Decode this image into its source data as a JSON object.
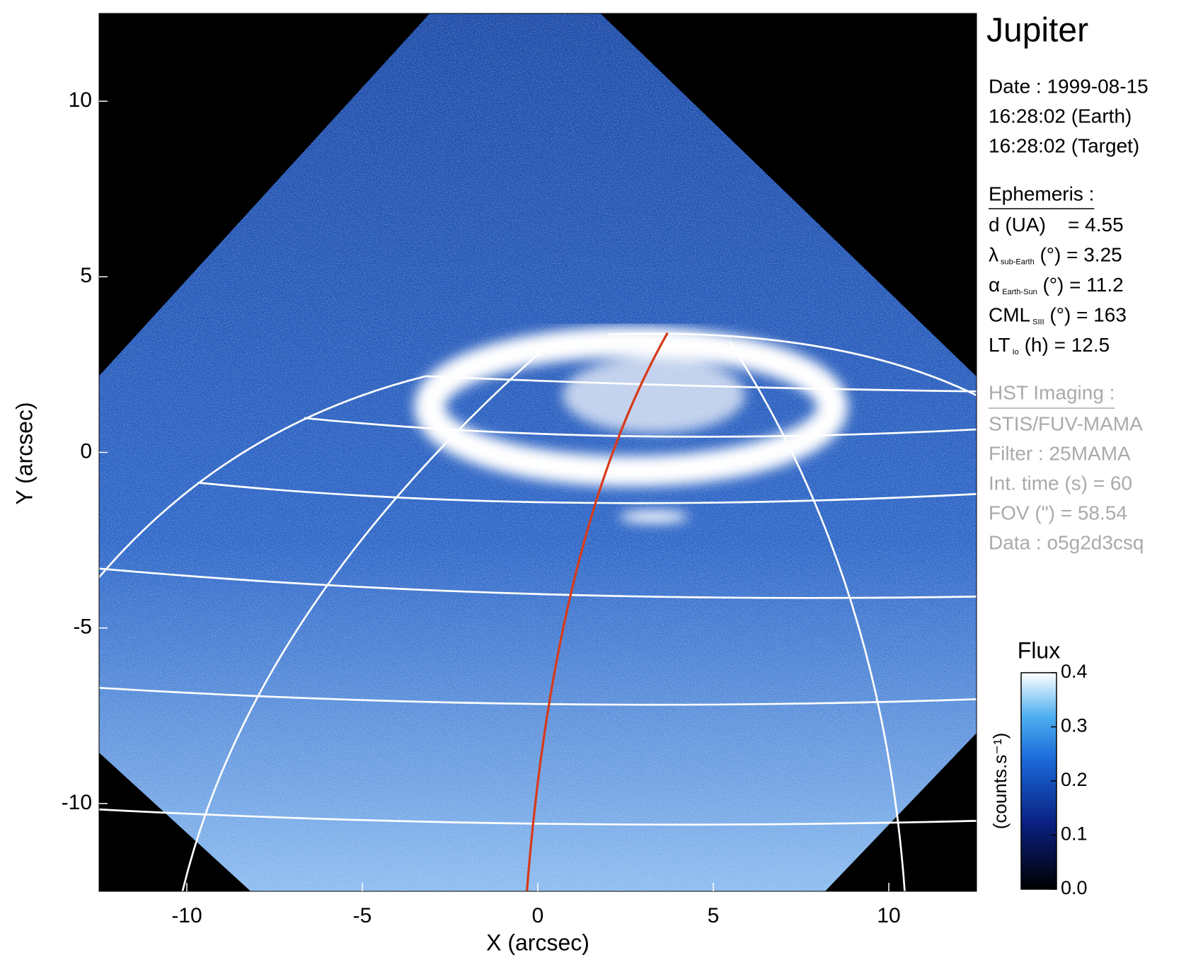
{
  "chart_data": {
    "type": "image",
    "title": "Jupiter",
    "xlabel": "X (arcsec)",
    "ylabel": "Y (arcsec)",
    "xlim": [
      -12.5,
      12.5
    ],
    "ylim": [
      -12.5,
      12.5
    ],
    "xticks": [
      -10,
      -5,
      0,
      5,
      10
    ],
    "yticks": [
      -10,
      -5,
      0,
      5,
      10
    ],
    "info": {
      "date_lines": [
        "Date : 1999-08-15",
        "16:28:02 (Earth)",
        "16:28:02 (Target)"
      ],
      "ephemeris_title": "Ephemeris :",
      "ephemeris": [
        {
          "text": "d (UA)    = 4.55"
        },
        {
          "symbol": "λ",
          "subscript": "sub-Earth",
          "text": " (°) = 3.25"
        },
        {
          "symbol": "α",
          "subscript": "Earth-Sun",
          "text": " (°) = 11.2"
        },
        {
          "symbol": "CML",
          "subscript": "SIII",
          "text": " (°) = 163"
        },
        {
          "symbol": "LT",
          "subscript": "Io",
          "text": " (h) = 12.5"
        }
      ],
      "hst_title": "HST Imaging :",
      "hst": [
        "STIS/FUV-MAMA",
        "Filter : 25MAMA",
        "Int. time (s) = 60",
        "FOV (\") = 58.54",
        "Data : o5g2d3csq"
      ]
    },
    "colorbar": {
      "title": "Flux",
      "label": "(counts.s⁻¹)",
      "lim": [
        0,
        0.4
      ],
      "ticks": [
        {
          "value": 0,
          "label": "0.0"
        },
        {
          "value": 0.1,
          "label": "0.1"
        },
        {
          "value": 0.2,
          "label": "0.2"
        },
        {
          "value": 0.3,
          "label": "0.3"
        },
        {
          "value": 0.4,
          "label": "0.4"
        }
      ]
    }
  }
}
